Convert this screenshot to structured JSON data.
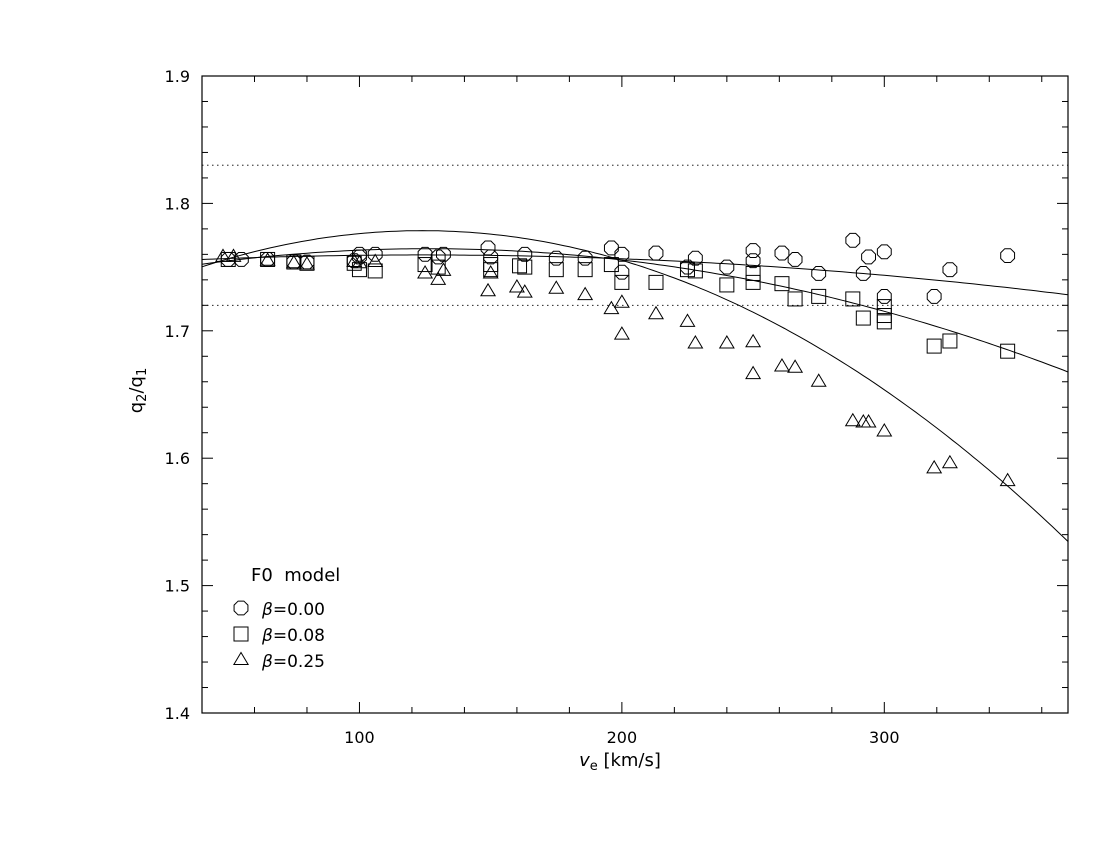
{
  "chart_data": {
    "type": "scatter",
    "xlabel": {
      "main": "v",
      "sub": "e",
      "unit": " [km/s]"
    },
    "ylabel": {
      "q": "q",
      "s1": "2",
      "slash": "/q",
      "s2": "1"
    },
    "xlim": [
      40,
      370
    ],
    "ylim": [
      1.4,
      1.9
    ],
    "x_ticks_major": [
      100,
      200,
      300
    ],
    "x_tick_labels": [
      "100",
      "200",
      "300"
    ],
    "x_ticks_minor_step": 20,
    "y_ticks_major": [
      1.4,
      1.5,
      1.6,
      1.7,
      1.8,
      1.9
    ],
    "y_tick_labels": [
      "1.4",
      "1.5",
      "1.6",
      "1.7",
      "1.8",
      "1.9"
    ],
    "y_ticks_minor_step": 0.02,
    "reference_lines_y": [
      1.83,
      1.72
    ],
    "legend": {
      "title": "F0  model",
      "position": "bottom-left",
      "entries": [
        {
          "symbol": "β",
          "label": "=0.00",
          "marker": "octagon"
        },
        {
          "symbol": "β",
          "label": "=0.08",
          "marker": "square"
        },
        {
          "symbol": "β",
          "label": "=0.25",
          "marker": "triangle"
        }
      ]
    },
    "series": [
      {
        "name": "β=0.00",
        "marker": "octagon",
        "points": [
          [
            50,
            1.756
          ],
          [
            55,
            1.756
          ],
          [
            65,
            1.756
          ],
          [
            75,
            1.754
          ],
          [
            80,
            1.754
          ],
          [
            98,
            1.755
          ],
          [
            100,
            1.758
          ],
          [
            100,
            1.76
          ],
          [
            106,
            1.76
          ],
          [
            125,
            1.76
          ],
          [
            130,
            1.758
          ],
          [
            132,
            1.76
          ],
          [
            149,
            1.765
          ],
          [
            150,
            1.758
          ],
          [
            163,
            1.76
          ],
          [
            175,
            1.757
          ],
          [
            186,
            1.757
          ],
          [
            196,
            1.765
          ],
          [
            200,
            1.76
          ],
          [
            200,
            1.746
          ],
          [
            213,
            1.761
          ],
          [
            225,
            1.75
          ],
          [
            228,
            1.757
          ],
          [
            240,
            1.75
          ],
          [
            250,
            1.763
          ],
          [
            250,
            1.755
          ],
          [
            261,
            1.761
          ],
          [
            266,
            1.756
          ],
          [
            275,
            1.745
          ],
          [
            288,
            1.771
          ],
          [
            292,
            1.745
          ],
          [
            294,
            1.758
          ],
          [
            300,
            1.762
          ],
          [
            300,
            1.727
          ],
          [
            319,
            1.727
          ],
          [
            325,
            1.748
          ],
          [
            347,
            1.759
          ]
        ],
        "fit": {
          "c0": 1.7517,
          "c1": 0.000127,
          "c2": -5.14e-07
        }
      },
      {
        "name": "β=0.08",
        "marker": "square",
        "points": [
          [
            50,
            1.756
          ],
          [
            65,
            1.756
          ],
          [
            75,
            1.754
          ],
          [
            80,
            1.753
          ],
          [
            98,
            1.753
          ],
          [
            100,
            1.748
          ],
          [
            106,
            1.747
          ],
          [
            125,
            1.752
          ],
          [
            130,
            1.75
          ],
          [
            150,
            1.752
          ],
          [
            150,
            1.748
          ],
          [
            161,
            1.751
          ],
          [
            163,
            1.75
          ],
          [
            175,
            1.748
          ],
          [
            186,
            1.748
          ],
          [
            196,
            1.752
          ],
          [
            200,
            1.738
          ],
          [
            213,
            1.738
          ],
          [
            225,
            1.748
          ],
          [
            228,
            1.747
          ],
          [
            240,
            1.736
          ],
          [
            250,
            1.745
          ],
          [
            250,
            1.738
          ],
          [
            261,
            1.737
          ],
          [
            266,
            1.725
          ],
          [
            275,
            1.727
          ],
          [
            288,
            1.725
          ],
          [
            292,
            1.71
          ],
          [
            300,
            1.719
          ],
          [
            300,
            1.712
          ],
          [
            300,
            1.707
          ],
          [
            319,
            1.688
          ],
          [
            325,
            1.692
          ],
          [
            347,
            1.684
          ]
        ],
        "fit": {
          "c0": 1.7384,
          "c1": 0.000412,
          "c2": -1.63e-06
        }
      },
      {
        "name": "β=0.25",
        "marker": "triangle",
        "points": [
          [
            48,
            1.758
          ],
          [
            52,
            1.758
          ],
          [
            65,
            1.755
          ],
          [
            75,
            1.753
          ],
          [
            80,
            1.752
          ],
          [
            98,
            1.754
          ],
          [
            100,
            1.753
          ],
          [
            106,
            1.754
          ],
          [
            125,
            1.745
          ],
          [
            130,
            1.74
          ],
          [
            132,
            1.747
          ],
          [
            149,
            1.731
          ],
          [
            150,
            1.745
          ],
          [
            160,
            1.734
          ],
          [
            163,
            1.73
          ],
          [
            175,
            1.733
          ],
          [
            186,
            1.728
          ],
          [
            196,
            1.717
          ],
          [
            200,
            1.722
          ],
          [
            200,
            1.697
          ],
          [
            213,
            1.713
          ],
          [
            225,
            1.707
          ],
          [
            228,
            1.69
          ],
          [
            240,
            1.69
          ],
          [
            250,
            1.666
          ],
          [
            250,
            1.691
          ],
          [
            261,
            1.672
          ],
          [
            266,
            1.671
          ],
          [
            275,
            1.66
          ],
          [
            288,
            1.629
          ],
          [
            292,
            1.628
          ],
          [
            294,
            1.628
          ],
          [
            300,
            1.621
          ],
          [
            319,
            1.592
          ],
          [
            325,
            1.596
          ],
          [
            347,
            1.582
          ]
        ],
        "fit": {
          "c0": 1.7167,
          "c1": 0.000999,
          "c2": -4.03e-06
        }
      }
    ]
  }
}
